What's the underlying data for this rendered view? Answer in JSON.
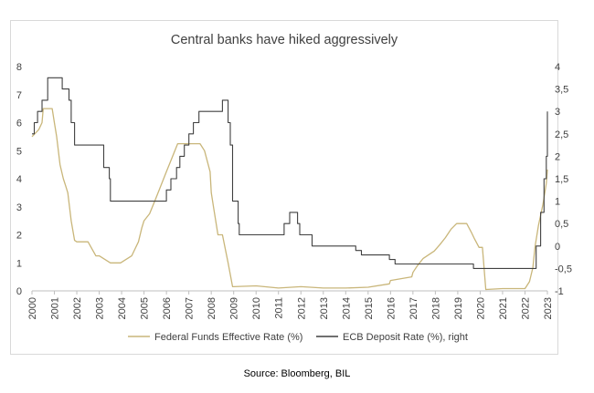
{
  "chart_data": {
    "type": "line",
    "title": "Central banks have hiked aggressively",
    "source": "Source: Bloomberg, BIL",
    "x_ticks": [
      "2000",
      "2001",
      "2002",
      "2003",
      "2004",
      "2005",
      "2006",
      "2007",
      "2008",
      "2009",
      "2010",
      "2011",
      "2012",
      "2013",
      "2014",
      "2015",
      "2016",
      "2017",
      "2018",
      "2019",
      "2020",
      "2021",
      "2022",
      "2023"
    ],
    "xlim": [
      2000,
      2023
    ],
    "y_left_ticks": [
      "0",
      "1",
      "2",
      "3",
      "4",
      "5",
      "6",
      "7",
      "8"
    ],
    "ylim_left": [
      0,
      8
    ],
    "y_right_ticks": [
      "-1",
      "-0,5",
      "0",
      "0,5",
      "1",
      "1,5",
      "2",
      "2,5",
      "3",
      "3,5",
      "4"
    ],
    "ylim_right": [
      -1,
      4
    ],
    "legend_position": "bottom",
    "grid": false,
    "series": [
      {
        "name": "Federal Funds Effective Rate (%)",
        "axis": "left",
        "color": "#c9b67a",
        "x": [
          2000.0,
          2000.3,
          2000.45,
          2000.5,
          2000.7,
          2000.9,
          2001.0,
          2001.1,
          2001.25,
          2001.4,
          2001.5,
          2001.6,
          2001.75,
          2001.9,
          2002.0,
          2002.5,
          2002.85,
          2003.0,
          2003.5,
          2003.95,
          2004.45,
          2004.6,
          2004.75,
          2004.9,
          2005.0,
          2005.25,
          2005.5,
          2005.75,
          2006.0,
          2006.25,
          2006.5,
          2007.0,
          2007.5,
          2007.7,
          2007.95,
          2008.0,
          2008.1,
          2008.3,
          2008.5,
          2008.75,
          2008.95,
          2009.0,
          2010.0,
          2011.0,
          2012.0,
          2013.0,
          2014.0,
          2015.0,
          2015.95,
          2016.0,
          2016.95,
          2017.0,
          2017.2,
          2017.45,
          2017.95,
          2018.2,
          2018.45,
          2018.7,
          2018.95,
          2019.4,
          2019.6,
          2019.75,
          2019.95,
          2020.1,
          2020.25,
          2021.0,
          2022.0,
          2022.2,
          2022.35,
          2022.45,
          2022.6,
          2022.8,
          2022.95,
          2023.0
        ],
        "values": [
          5.5,
          5.75,
          6.0,
          6.5,
          6.5,
          6.5,
          6.0,
          5.5,
          4.5,
          4.0,
          3.75,
          3.5,
          2.5,
          1.8,
          1.75,
          1.75,
          1.25,
          1.25,
          1.0,
          1.0,
          1.25,
          1.5,
          1.75,
          2.25,
          2.5,
          2.75,
          3.25,
          3.75,
          4.25,
          4.75,
          5.25,
          5.25,
          5.25,
          5.0,
          4.25,
          3.5,
          3.0,
          2.0,
          2.0,
          1.0,
          0.15,
          0.15,
          0.18,
          0.1,
          0.15,
          0.1,
          0.1,
          0.13,
          0.25,
          0.37,
          0.5,
          0.66,
          0.9,
          1.15,
          1.42,
          1.65,
          1.9,
          2.2,
          2.4,
          2.4,
          2.1,
          1.85,
          1.55,
          1.55,
          0.05,
          0.08,
          0.08,
          0.33,
          0.83,
          1.58,
          2.33,
          3.08,
          3.83,
          4.33
        ]
      },
      {
        "name": "ECB Deposit Rate (%), right",
        "axis": "right",
        "color": "#404040",
        "x": [
          2000.0,
          2000.1,
          2000.25,
          2000.45,
          2000.7,
          2000.95,
          2001.0,
          2001.35,
          2001.65,
          2001.75,
          2001.9,
          2002.95,
          2003.2,
          2003.45,
          2003.5,
          2005.9,
          2006.0,
          2006.2,
          2006.45,
          2006.6,
          2006.8,
          2007.0,
          2007.2,
          2007.45,
          2008.5,
          2008.75,
          2008.85,
          2008.95,
          2009.0,
          2009.2,
          2009.25,
          2009.4,
          2011.25,
          2011.5,
          2011.85,
          2011.95,
          2012.5,
          2014.45,
          2014.7,
          2015.95,
          2016.2,
          2019.7,
          2022.5,
          2022.7,
          2022.85,
          2022.95,
          2023.0
        ],
        "values": [
          2.5,
          2.75,
          3.0,
          3.25,
          3.75,
          3.75,
          3.75,
          3.5,
          3.25,
          2.75,
          2.25,
          2.25,
          1.75,
          1.5,
          1.0,
          1.0,
          1.25,
          1.5,
          1.75,
          2.0,
          2.25,
          2.5,
          2.75,
          3.0,
          3.25,
          2.75,
          2.25,
          1.0,
          1.0,
          0.5,
          0.25,
          0.25,
          0.5,
          0.75,
          0.5,
          0.25,
          0.0,
          -0.1,
          -0.2,
          -0.3,
          -0.4,
          -0.5,
          0.0,
          0.75,
          1.5,
          2.0,
          3.0
        ]
      }
    ]
  }
}
